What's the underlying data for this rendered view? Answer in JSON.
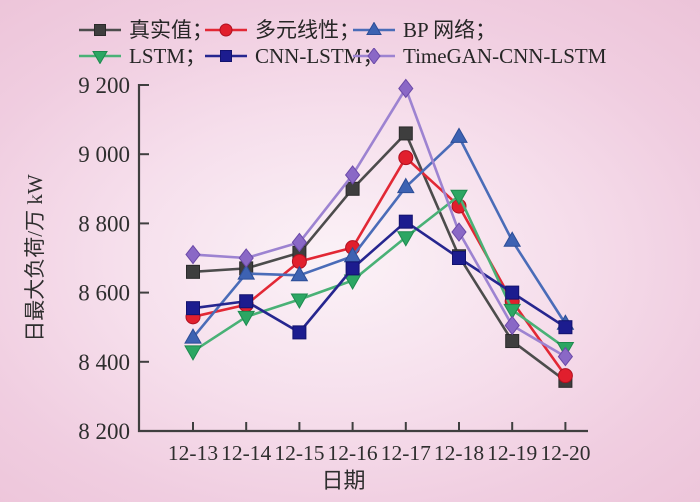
{
  "figure": {
    "x_axis_title": "日期",
    "y_axis_title": "日最大负荷/万 kW"
  },
  "palette": {
    "background_outer": "#ecc3d8",
    "background_inner": "#fbf2f7",
    "axis": "#3f3f3f",
    "text": "#2e2e2e"
  },
  "chart_data": {
    "type": "line",
    "title": "",
    "xlabel": "日期",
    "ylabel": "日最大负荷/万 kW",
    "ylim": [
      8200,
      9200
    ],
    "grid": false,
    "legend_position": "top",
    "categories": [
      "12-13",
      "12-14",
      "12-15",
      "12-16",
      "12-17",
      "12-18",
      "12-19",
      "12-20"
    ],
    "y_ticks": [
      8200,
      8400,
      8600,
      8800,
      9000,
      9200
    ],
    "y_tick_labels": [
      "8 200",
      "8 400",
      "8 600",
      "8 800",
      "9 000",
      "9 200"
    ],
    "legend_labels": [
      "真实值；",
      "多元线性；",
      "BP 网络；",
      "LSTM；",
      "CNN-LSTM；",
      "TimeGAN-CNN-LSTM"
    ],
    "series": [
      {
        "id": "actual",
        "name": "真实值",
        "marker": "square",
        "color": "#3e3e3e",
        "line_color": "#4c4c4c",
        "edge_color": "#2a2a2a",
        "values": [
          8660,
          8670,
          8715,
          8900,
          9060,
          8705,
          8460,
          8345
        ]
      },
      {
        "id": "multilinear",
        "name": "多元线性",
        "marker": "circle",
        "color": "#e11f2d",
        "line_color": "#e22835",
        "edge_color": "#b01020",
        "values": [
          8530,
          8565,
          8690,
          8730,
          8990,
          8850,
          8575,
          8360
        ]
      },
      {
        "id": "bp-network",
        "name": "BP 网络",
        "marker": "triangle-up",
        "color": "#3d62b2",
        "line_color": "#4a6cb8",
        "edge_color": "#2c4d96",
        "values": [
          8470,
          8655,
          8650,
          8705,
          8905,
          9050,
          8750,
          8510
        ]
      },
      {
        "id": "lstm",
        "name": "LSTM",
        "marker": "triangle-down",
        "color": "#2ca663",
        "line_color": "#49b176",
        "edge_color": "#1d8a4e",
        "values": [
          8430,
          8530,
          8580,
          8635,
          8760,
          8880,
          8550,
          8440
        ]
      },
      {
        "id": "cnn-lstm",
        "name": "CNN-LSTM",
        "marker": "square",
        "color": "#1c1c8f",
        "line_color": "#26268f",
        "edge_color": "#12126e",
        "values": [
          8555,
          8575,
          8485,
          8670,
          8805,
          8700,
          8600,
          8500
        ]
      },
      {
        "id": "timegan-cnn-lstm",
        "name": "TimeGAN-CNN-LSTM",
        "marker": "diamond",
        "color": "#8a68c6",
        "line_color": "#9d83d1",
        "edge_color": "#6b49a8",
        "values": [
          8710,
          8700,
          8745,
          8940,
          9190,
          8775,
          8505,
          8415
        ]
      }
    ]
  }
}
